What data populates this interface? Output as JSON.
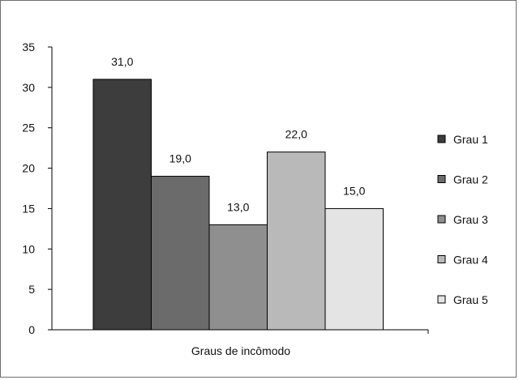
{
  "chart_data": {
    "type": "bar",
    "xlabel": "Graus de incômodo",
    "ylim": [
      0,
      35
    ],
    "yticks": [
      "0",
      "5",
      "10",
      "15",
      "20",
      "25",
      "30",
      "35"
    ],
    "grid": false,
    "legend_position": "right",
    "series": [
      {
        "name": "Grau 1",
        "value": 31.0,
        "label": "31,0",
        "color": "#3d3d3d"
      },
      {
        "name": "Grau 2",
        "value": 19.0,
        "label": "19,0",
        "color": "#6b6b6b"
      },
      {
        "name": "Grau 3",
        "value": 13.0,
        "label": "13,0",
        "color": "#8f8f8f"
      },
      {
        "name": "Grau 4",
        "value": 22.0,
        "label": "22,0",
        "color": "#b9b9b9"
      },
      {
        "name": "Grau 5",
        "value": 15.0,
        "label": "15,0",
        "color": "#e4e4e4"
      }
    ]
  }
}
